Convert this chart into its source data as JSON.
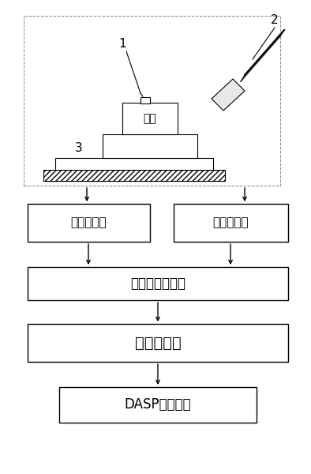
{
  "bg_color": "#ffffff",
  "line_color": "#000000",
  "label1": "1",
  "label2": "2",
  "label3": "3",
  "part_label": "零件",
  "box1_label": "宽带应变件",
  "box2_label": "电荷放大器",
  "box3_label": "低通抗混滤波器",
  "box4_label": "信号采集件",
  "box5_label": "DASP分析系统",
  "figsize": [
    3.94,
    6.0
  ],
  "dpi": 100
}
